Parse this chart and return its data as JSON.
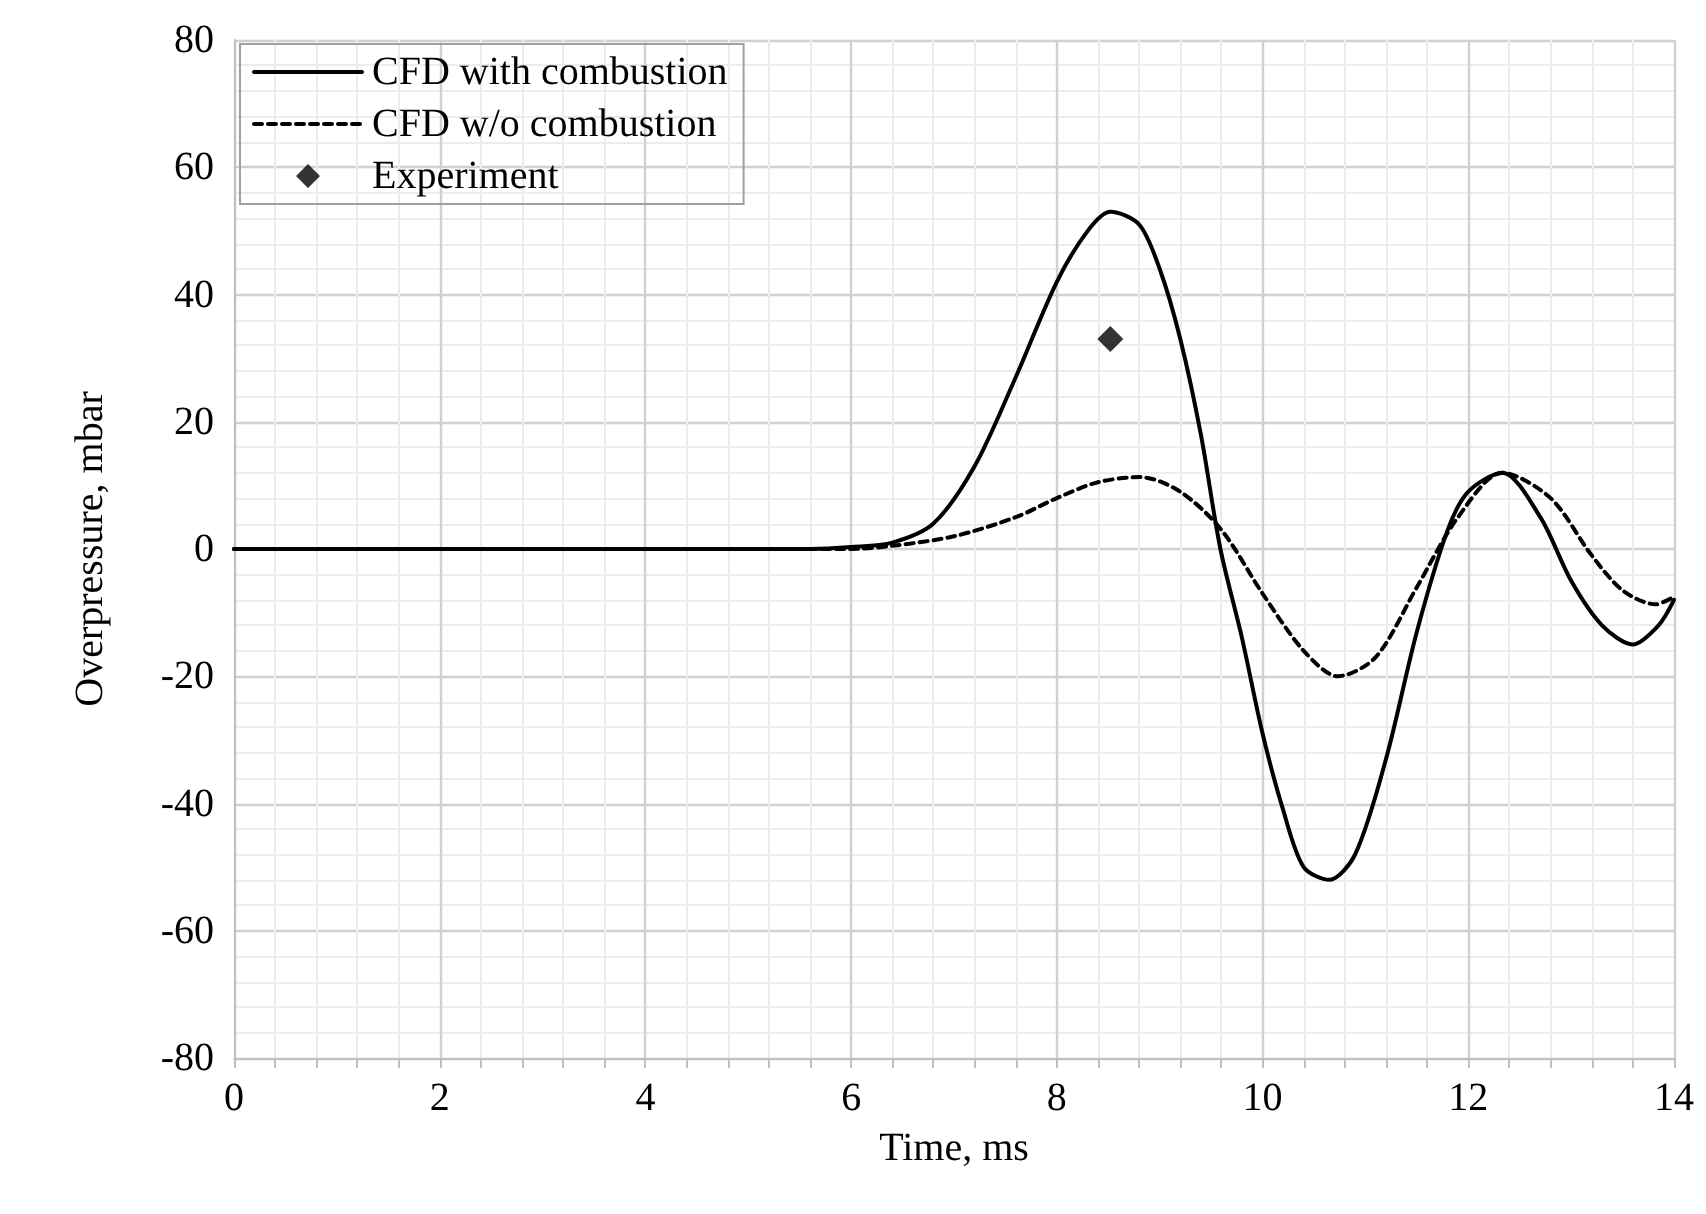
{
  "chart_data": {
    "type": "line",
    "xlabel": "Time, ms",
    "ylabel": "Overpressure, mbar",
    "xlim": [
      0,
      14
    ],
    "ylim": [
      -80,
      80
    ],
    "xticks": [
      0,
      2,
      4,
      6,
      8,
      10,
      12,
      14
    ],
    "yticks": [
      -80,
      -60,
      -40,
      -20,
      0,
      20,
      40,
      60,
      80
    ],
    "grid": true,
    "legend": "top left",
    "series": [
      {
        "name": "CFD with combustion",
        "color": "#000000",
        "line_style": "solid",
        "marker": "none",
        "x": [
          0,
          2,
          4,
          5.6,
          6,
          6.4,
          6.8,
          7.2,
          7.6,
          8,
          8.3,
          8.52,
          8.8,
          9,
          9.2,
          9.4,
          9.59,
          9.8,
          10,
          10.2,
          10.4,
          10.65,
          10.9,
          11.2,
          11.5,
          11.8,
          12,
          12.33,
          12.7,
          13,
          13.3,
          13.6,
          13.85,
          14
        ],
        "values": [
          0,
          0,
          0,
          0,
          0.3,
          1,
          4,
          13,
          27,
          42,
          50,
          53,
          51,
          44,
          33,
          18,
          0,
          -14,
          -29,
          -41,
          -50,
          -52,
          -48,
          -33,
          -13,
          3,
          9,
          12,
          5,
          -5,
          -12,
          -15,
          -12,
          -8
        ]
      },
      {
        "name": "CFD w/o combustion",
        "color": "#000000",
        "line_style": "dashed",
        "marker": "none",
        "x": [
          0,
          2,
          4,
          5.6,
          6,
          6.4,
          7,
          7.6,
          8,
          8.4,
          8.81,
          9.2,
          9.6,
          10,
          10.4,
          10.73,
          11.1,
          11.5,
          11.9,
          12.33,
          12.8,
          13.2,
          13.5,
          13.82,
          14
        ],
        "values": [
          0,
          0,
          0,
          0,
          0,
          0.5,
          2,
          5,
          8,
          10.5,
          11.3,
          9,
          3,
          -7,
          -16,
          -20,
          -17,
          -6,
          5,
          12,
          8,
          -1,
          -6.5,
          -8.7,
          -7.5
        ]
      },
      {
        "name": "Experiment",
        "type": "scatter",
        "color": "#000000",
        "marker": "diamond",
        "x": [
          8.52
        ],
        "values": [
          33
        ]
      }
    ]
  }
}
